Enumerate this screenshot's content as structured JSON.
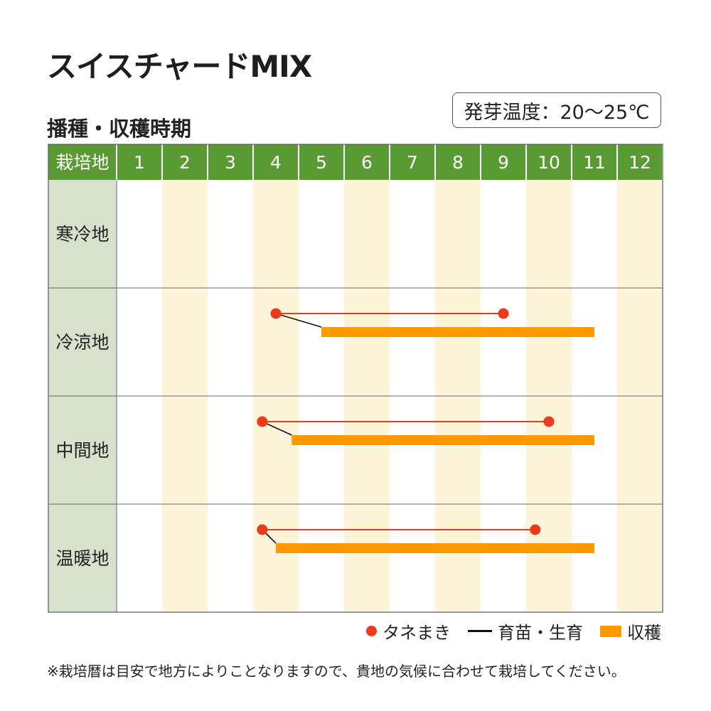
{
  "title": "スイスチャードMIX",
  "subtitle": "播種・収穫時期",
  "germination_temp": "発芽温度：20～25℃",
  "colors": {
    "header_green": "#5a9a32",
    "region_col_bg": "#d8e1cc",
    "stripe": "#fdf4da",
    "sowing_red": "#ee3a1a",
    "harvest_orange": "#ff9900",
    "seedling_black": "#111111"
  },
  "chart_data": {
    "type": "gantt",
    "corner_label": "栽培地",
    "months": [
      "1",
      "2",
      "3",
      "4",
      "5",
      "6",
      "7",
      "8",
      "9",
      "10",
      "11",
      "12"
    ],
    "rows": [
      {
        "region": "寒冷地",
        "sowing": null,
        "harvest": null
      },
      {
        "region": "冷涼地",
        "sowing": [
          4.5,
          9.5
        ],
        "harvest": [
          5.5,
          11.5
        ]
      },
      {
        "region": "中間地",
        "sowing": [
          4.2,
          10.5
        ],
        "harvest": [
          4.85,
          11.5
        ]
      },
      {
        "region": "温暖地",
        "sowing": [
          4.2,
          10.2
        ],
        "harvest": [
          4.5,
          11.5
        ]
      }
    ]
  },
  "legend": {
    "sowing": "タネまき",
    "seedling": "育苗・生育",
    "harvest": "収穫"
  },
  "footnote": "※栽培暦は目安で地方によりことなりますので、貴地の気候に合わせて栽培してください。"
}
